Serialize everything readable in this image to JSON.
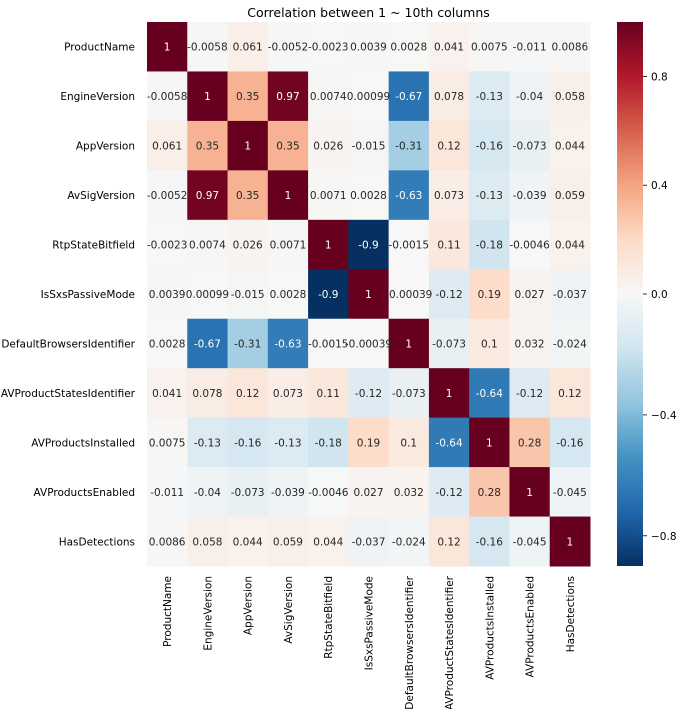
{
  "chart_data": {
    "type": "heatmap",
    "title": "Correlation between 1 ~ 10th columns",
    "xlabel": "",
    "ylabel": "",
    "rows": [
      "ProductName",
      "EngineVersion",
      "AppVersion",
      "AvSigVersion",
      "RtpStateBitfield",
      "IsSxsPassiveMode",
      "DefaultBrowsersIdentifier",
      "AVProductStatesIdentifier",
      "AVProductsInstalled",
      "AVProductsEnabled",
      "HasDetections"
    ],
    "columns": [
      "ProductName",
      "EngineVersion",
      "AppVersion",
      "AvSigVersion",
      "RtpStateBitfield",
      "IsSxsPassiveMode",
      "DefaultBrowsersIdentifier",
      "AVProductStatesIdentifier",
      "AVProductsInstalled",
      "AVProductsEnabled",
      "HasDetections"
    ],
    "values": [
      [
        1,
        -0.0058,
        0.061,
        -0.0052,
        -0.0023,
        0.0039,
        0.0028,
        0.041,
        0.0075,
        -0.011,
        0.0086
      ],
      [
        -0.0058,
        1,
        0.35,
        0.97,
        0.0074,
        0.00099,
        -0.67,
        0.078,
        -0.13,
        -0.04,
        0.058
      ],
      [
        0.061,
        0.35,
        1,
        0.35,
        0.026,
        -0.015,
        -0.31,
        0.12,
        -0.16,
        -0.073,
        0.044
      ],
      [
        -0.0052,
        0.97,
        0.35,
        1,
        0.0071,
        0.0028,
        -0.63,
        0.073,
        -0.13,
        -0.039,
        0.059
      ],
      [
        -0.0023,
        0.0074,
        0.026,
        0.0071,
        1,
        -0.9,
        -0.0015,
        0.11,
        -0.18,
        -0.0046,
        0.044
      ],
      [
        0.0039,
        0.00099,
        -0.015,
        0.0028,
        -0.9,
        1,
        -0.00039,
        -0.12,
        0.19,
        0.027,
        -0.037
      ],
      [
        0.0028,
        -0.67,
        -0.31,
        -0.63,
        -0.0015,
        -0.00039,
        1,
        -0.073,
        0.1,
        0.032,
        -0.024
      ],
      [
        0.041,
        0.078,
        0.12,
        0.073,
        0.11,
        -0.12,
        -0.073,
        1,
        -0.64,
        -0.12,
        0.12
      ],
      [
        0.0075,
        -0.13,
        -0.16,
        -0.13,
        -0.18,
        0.19,
        0.1,
        -0.64,
        1,
        0.28,
        -0.16
      ],
      [
        -0.011,
        -0.04,
        -0.073,
        -0.039,
        -0.0046,
        0.027,
        0.032,
        -0.12,
        0.28,
        1,
        -0.045
      ],
      [
        0.0086,
        0.058,
        0.044,
        0.059,
        0.044,
        -0.037,
        -0.024,
        0.12,
        -0.16,
        -0.045,
        1
      ]
    ],
    "value_labels": [
      [
        "1",
        "-0.0058",
        "0.061",
        "-0.0052",
        "-0.0023",
        "0.0039",
        "0.0028",
        "0.041",
        "0.0075",
        "-0.011",
        "0.0086"
      ],
      [
        "-0.0058",
        "1",
        "0.35",
        "0.97",
        "0.0074",
        "0.00099",
        "-0.67",
        "0.078",
        "-0.13",
        "-0.04",
        "0.058"
      ],
      [
        "0.061",
        "0.35",
        "1",
        "0.35",
        "0.026",
        "-0.015",
        "-0.31",
        "0.12",
        "-0.16",
        "-0.073",
        "0.044"
      ],
      [
        "-0.0052",
        "0.97",
        "0.35",
        "1",
        "0.0071",
        "0.0028",
        "-0.63",
        "0.073",
        "-0.13",
        "-0.039",
        "0.059"
      ],
      [
        "-0.0023",
        "0.0074",
        "0.026",
        "0.0071",
        "1",
        "-0.9",
        "-0.0015",
        "0.11",
        "-0.18",
        "-0.0046",
        "0.044"
      ],
      [
        "0.0039",
        "0.00099",
        "-0.015",
        "0.0028",
        "-0.9",
        "1",
        "-0.00039",
        "-0.12",
        "0.19",
        "0.027",
        "-0.037"
      ],
      [
        "0.0028",
        "-0.67",
        "-0.31",
        "-0.63",
        "-0.0015",
        "-0.00039",
        "1",
        "-0.073",
        "0.1",
        "0.032",
        "-0.024"
      ],
      [
        "0.041",
        "0.078",
        "0.12",
        "0.073",
        "0.11",
        "-0.12",
        "-0.073",
        "1",
        "-0.64",
        "-0.12",
        "0.12"
      ],
      [
        "0.0075",
        "-0.13",
        "-0.16",
        "-0.13",
        "-0.18",
        "0.19",
        "0.1",
        "-0.64",
        "1",
        "0.28",
        "-0.16"
      ],
      [
        "-0.011",
        "-0.04",
        "-0.073",
        "-0.039",
        "-0.0046",
        "0.027",
        "0.032",
        "-0.12",
        "0.28",
        "1",
        "-0.045"
      ],
      [
        "0.0086",
        "0.058",
        "0.044",
        "0.059",
        "0.044",
        "-0.037",
        "-0.024",
        "0.12",
        "-0.16",
        "-0.045",
        "1"
      ]
    ],
    "colorbar": {
      "colormap": "RdBu_r",
      "vmin": -0.9,
      "vmax": 1.0,
      "ticks": [
        -0.8,
        -0.4,
        0.0,
        0.4,
        0.8
      ],
      "tick_labels": [
        "−0.8",
        "−0.4",
        "0.0",
        "0.4",
        "0.8"
      ]
    },
    "annotations": true,
    "grid": false
  }
}
